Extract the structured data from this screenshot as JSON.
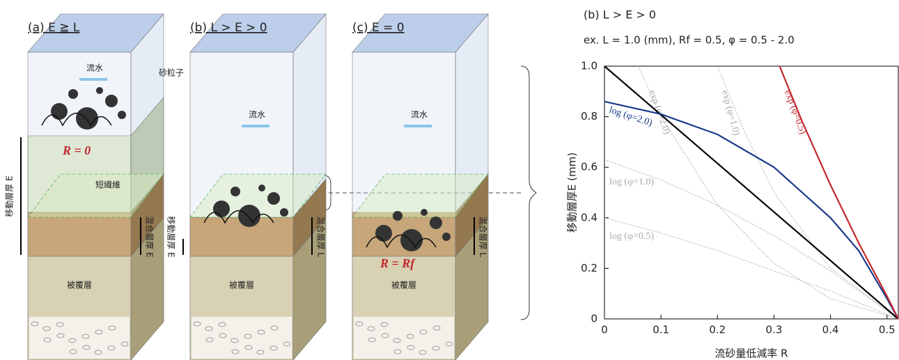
{
  "diagram": {
    "panels": [
      {
        "title": "(a) E ≧ L",
        "flow": "流水",
        "particle": "砂粒子",
        "r_label": "R = 0",
        "fiber": "短繊維",
        "mobile": "移動層厚 E",
        "mixed": "混合層厚 E",
        "cover": "被覆層"
      },
      {
        "title": "(b) L > E > 0",
        "flow": "流水",
        "mixed": "混合層厚 L",
        "mobile": "移動層厚 E",
        "cover": "被覆層"
      },
      {
        "title": "(c) E = 0",
        "flow": "流水",
        "mixed": "混合層厚 L",
        "r_label": "R = Rf",
        "cover": "被覆層"
      }
    ]
  },
  "chart_data": {
    "type": "line",
    "title": "(b) L > E > 0",
    "subtitle": "ex. L = 1.0 (mm), Rf = 0.5, φ = 0.5 - 2.0",
    "x_label": "流砂量低減率 R",
    "y_label": "移動層厚E (mm)",
    "xlim": [
      0,
      0.52
    ],
    "ylim": [
      0,
      1
    ],
    "xticks": [
      0,
      0.1,
      0.2,
      0.3,
      0.4,
      0.5
    ],
    "yticks": [
      0,
      0.2,
      0.4,
      0.6,
      0.8,
      {
        "value": 1,
        "label": "1.0"
      }
    ],
    "series": [
      {
        "name": "exp (φ=2.0)",
        "color": "#aaaaaa",
        "line_style": "dotted",
        "x": [
          0.06,
          0.1,
          0.2,
          0.3,
          0.4,
          0.52
        ],
        "values": [
          1.0,
          0.8,
          0.45,
          0.22,
          0.08,
          0
        ]
      },
      {
        "name": "exp (φ=1.0)",
        "color": "#aaaaaa",
        "line_style": "dotted",
        "x": [
          0.2,
          0.25,
          0.3,
          0.4,
          0.52
        ],
        "values": [
          1.0,
          0.73,
          0.5,
          0.2,
          0
        ]
      },
      {
        "name": "log (φ=1.0)",
        "color": "#aaaaaa",
        "line_style": "dotted",
        "x": [
          0,
          0.1,
          0.2,
          0.3,
          0.4,
          0.52
        ],
        "values": [
          0.63,
          0.55,
          0.45,
          0.33,
          0.19,
          0
        ]
      },
      {
        "name": "log (φ=0.5)",
        "color": "#aaaaaa",
        "line_style": "dotted",
        "x": [
          0,
          0.1,
          0.2,
          0.3,
          0.4,
          0.52
        ],
        "values": [
          0.4,
          0.34,
          0.27,
          0.19,
          0.11,
          0
        ]
      },
      {
        "color": "#000000",
        "line_style": "solid",
        "x": [
          0,
          0.52
        ],
        "values": [
          1,
          0
        ]
      },
      {
        "name": "log (φ=2.0)",
        "color": "#1a3a8c",
        "line_style": "solid",
        "x": [
          0,
          0.1,
          0.2,
          0.3,
          0.4,
          0.45,
          0.5,
          0.52
        ],
        "values": [
          0.86,
          0.81,
          0.73,
          0.6,
          0.4,
          0.27,
          0.08,
          0
        ]
      },
      {
        "name": "exp (φ=0.5)",
        "color": "#c0282d",
        "line_style": "solid",
        "x": [
          0.31,
          0.35,
          0.4,
          0.45,
          0.5,
          0.52
        ],
        "values": [
          1.0,
          0.78,
          0.53,
          0.3,
          0.09,
          0
        ]
      }
    ]
  }
}
